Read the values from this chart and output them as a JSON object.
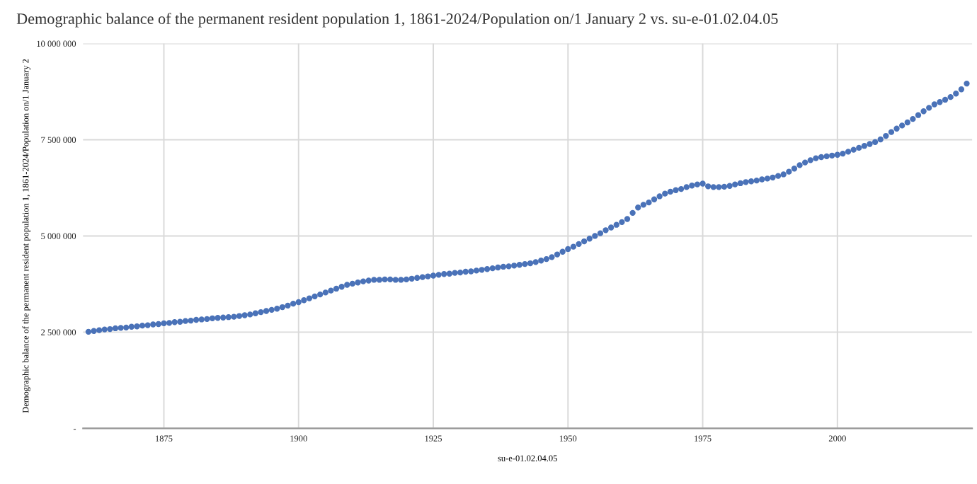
{
  "chart_data": {
    "type": "scatter",
    "title": "Demographic balance of the permanent resident population 1, 1861-2024/Population on/1 January 2 vs. su-e-01.02.04.05",
    "xlabel": "su-e-01.02.04.05",
    "ylabel": "Demographic balance of the permanent resident population 1, 1861-2024/Population on/1 January 2",
    "xlim": [
      1860,
      2025
    ],
    "xticks": [
      1875,
      1900,
      1925,
      1950,
      1975,
      2000
    ],
    "ylim": [
      0,
      10000000
    ],
    "yticks": [
      {
        "value": 0,
        "label": "-"
      },
      {
        "value": 2500000,
        "label": "2 500 000"
      },
      {
        "value": 5000000,
        "label": "5 000 000"
      },
      {
        "value": 7500000,
        "label": "7 500 000"
      },
      {
        "value": 10000000,
        "label": "10 000 000"
      }
    ],
    "grid": true,
    "marker": "circle",
    "x": [
      1861,
      1862,
      1863,
      1864,
      1865,
      1866,
      1867,
      1868,
      1869,
      1870,
      1871,
      1872,
      1873,
      1874,
      1875,
      1876,
      1877,
      1878,
      1879,
      1880,
      1881,
      1882,
      1883,
      1884,
      1885,
      1886,
      1887,
      1888,
      1889,
      1890,
      1891,
      1892,
      1893,
      1894,
      1895,
      1896,
      1897,
      1898,
      1899,
      1900,
      1901,
      1902,
      1903,
      1904,
      1905,
      1906,
      1907,
      1908,
      1909,
      1910,
      1911,
      1912,
      1913,
      1914,
      1915,
      1916,
      1917,
      1918,
      1919,
      1920,
      1921,
      1922,
      1923,
      1924,
      1925,
      1926,
      1927,
      1928,
      1929,
      1930,
      1931,
      1932,
      1933,
      1934,
      1935,
      1936,
      1937,
      1938,
      1939,
      1940,
      1941,
      1942,
      1943,
      1944,
      1945,
      1946,
      1947,
      1948,
      1949,
      1950,
      1951,
      1952,
      1953,
      1954,
      1955,
      1956,
      1957,
      1958,
      1959,
      1960,
      1961,
      1962,
      1963,
      1964,
      1965,
      1966,
      1967,
      1968,
      1969,
      1970,
      1971,
      1972,
      1973,
      1974,
      1975,
      1976,
      1977,
      1978,
      1979,
      1980,
      1981,
      1982,
      1983,
      1984,
      1985,
      1986,
      1987,
      1988,
      1989,
      1990,
      1991,
      1992,
      1993,
      1994,
      1995,
      1996,
      1997,
      1998,
      1999,
      2000,
      2001,
      2002,
      2003,
      2004,
      2005,
      2006,
      2007,
      2008,
      2009,
      2010,
      2011,
      2012,
      2013,
      2014,
      2015,
      2016,
      2017,
      2018,
      2019,
      2020,
      2021,
      2022,
      2023,
      2024
    ],
    "series": [
      {
        "color": "#4a72b8",
        "values": [
          2510000,
          2530000,
          2550000,
          2570000,
          2580000,
          2600000,
          2610000,
          2620000,
          2640000,
          2650000,
          2670000,
          2680000,
          2700000,
          2710000,
          2730000,
          2740000,
          2760000,
          2770000,
          2790000,
          2800000,
          2820000,
          2830000,
          2840000,
          2860000,
          2870000,
          2880000,
          2890000,
          2900000,
          2920000,
          2940000,
          2960000,
          2990000,
          3020000,
          3050000,
          3080000,
          3110000,
          3150000,
          3190000,
          3240000,
          3280000,
          3330000,
          3380000,
          3430000,
          3480000,
          3530000,
          3580000,
          3630000,
          3680000,
          3730000,
          3760000,
          3790000,
          3820000,
          3840000,
          3860000,
          3860000,
          3870000,
          3870000,
          3860000,
          3860000,
          3870000,
          3890000,
          3910000,
          3930000,
          3950000,
          3970000,
          3990000,
          4010000,
          4020000,
          4040000,
          4050000,
          4070000,
          4080000,
          4100000,
          4120000,
          4140000,
          4160000,
          4180000,
          4200000,
          4210000,
          4230000,
          4250000,
          4270000,
          4290000,
          4320000,
          4360000,
          4400000,
          4450000,
          4520000,
          4590000,
          4660000,
          4720000,
          4790000,
          4860000,
          4930000,
          5000000,
          5070000,
          5150000,
          5220000,
          5290000,
          5360000,
          5440000,
          5600000,
          5740000,
          5810000,
          5870000,
          5950000,
          6030000,
          6100000,
          6150000,
          6190000,
          6220000,
          6270000,
          6310000,
          6340000,
          6360000,
          6290000,
          6270000,
          6270000,
          6280000,
          6300000,
          6340000,
          6370000,
          6400000,
          6420000,
          6440000,
          6470000,
          6490000,
          6520000,
          6560000,
          6600000,
          6670000,
          6750000,
          6840000,
          6910000,
          6970000,
          7020000,
          7050000,
          7070000,
          7090000,
          7110000,
          7140000,
          7190000,
          7240000,
          7290000,
          7340000,
          7390000,
          7440000,
          7510000,
          7600000,
          7700000,
          7790000,
          7870000,
          7950000,
          8040000,
          8140000,
          8240000,
          8330000,
          8420000,
          8480000,
          8540000,
          8610000,
          8700000,
          8810000,
          8960000
        ]
      }
    ]
  }
}
